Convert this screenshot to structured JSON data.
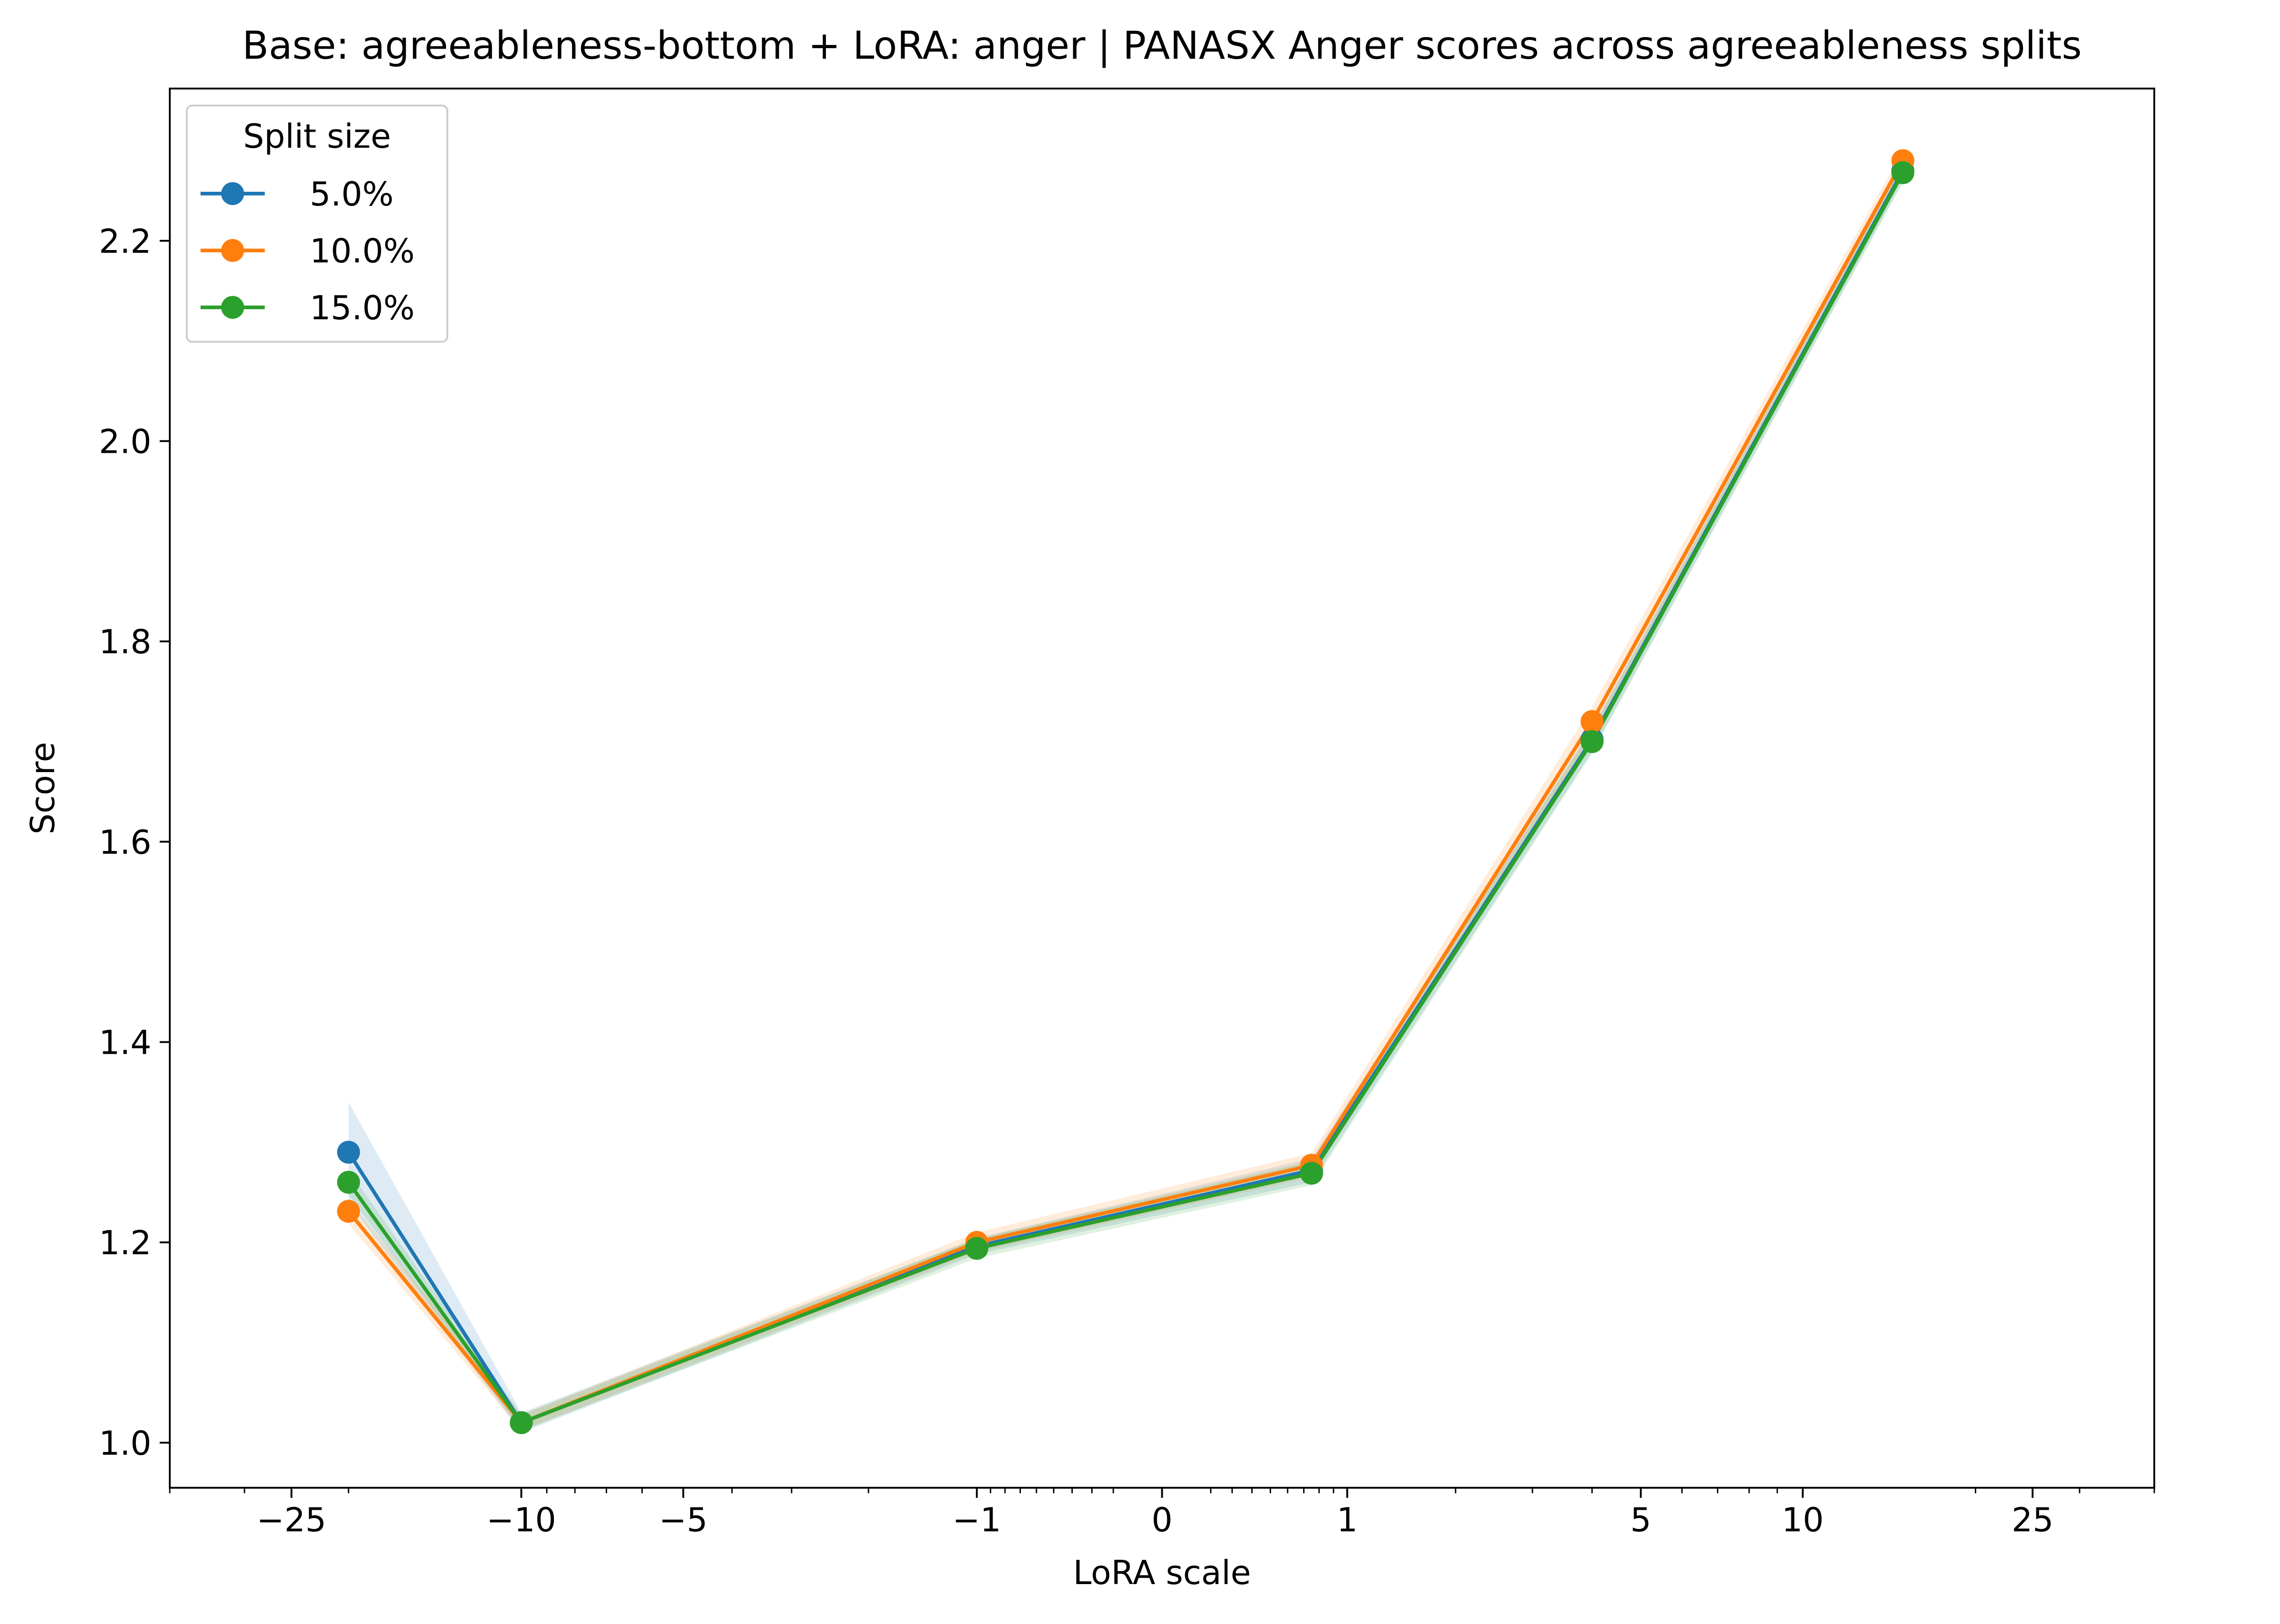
{
  "chart_data": {
    "type": "line",
    "title": "Base: agreeableness-bottom + LoRA: anger | PANASX Anger scores across agreeableness splits",
    "xlabel": "LoRA scale",
    "ylabel": "Score",
    "x_scale": "symlog",
    "xlim": [
      -40,
      40
    ],
    "ylim": [
      0.955,
      2.352
    ],
    "x_ticks": [
      -25,
      -10,
      -5,
      -1,
      0,
      1,
      5,
      10,
      25
    ],
    "x_tick_labels": [
      "−25",
      "−10",
      "−5",
      "−1",
      "0",
      "1",
      "5",
      "10",
      "25"
    ],
    "y_ticks": [
      1.0,
      1.2,
      1.4,
      1.6,
      1.8,
      2.0,
      2.2
    ],
    "y_tick_labels": [
      "1.0",
      "1.2",
      "1.4",
      "1.6",
      "1.8",
      "2.0",
      "2.2"
    ],
    "legend": {
      "title": "Split size",
      "position": "top-left"
    },
    "series": [
      {
        "name": "5.0%",
        "color": "#1f77b4",
        "x": [
          -20,
          -10,
          -1,
          0.75,
          4,
          15
        ],
        "y": [
          1.29,
          1.02,
          1.196,
          1.272,
          1.702,
          2.27
        ],
        "band": [
          0.05,
          0.01,
          0.008,
          0.012,
          0.012,
          0.01
        ]
      },
      {
        "name": "10.0%",
        "color": "#ff7f0e",
        "x": [
          -20,
          -10,
          -1,
          0.75,
          4,
          15
        ],
        "y": [
          1.231,
          1.02,
          1.2,
          1.277,
          1.72,
          2.28
        ],
        "band": [
          0.012,
          0.008,
          0.01,
          0.012,
          0.015,
          0.01
        ]
      },
      {
        "name": "15.0%",
        "color": "#2ca02c",
        "x": [
          -20,
          -10,
          -1,
          0.75,
          4,
          15
        ],
        "y": [
          1.26,
          1.02,
          1.194,
          1.269,
          1.7,
          2.268
        ],
        "band": [
          0.012,
          0.008,
          0.01,
          0.012,
          0.012,
          0.01
        ]
      }
    ]
  }
}
